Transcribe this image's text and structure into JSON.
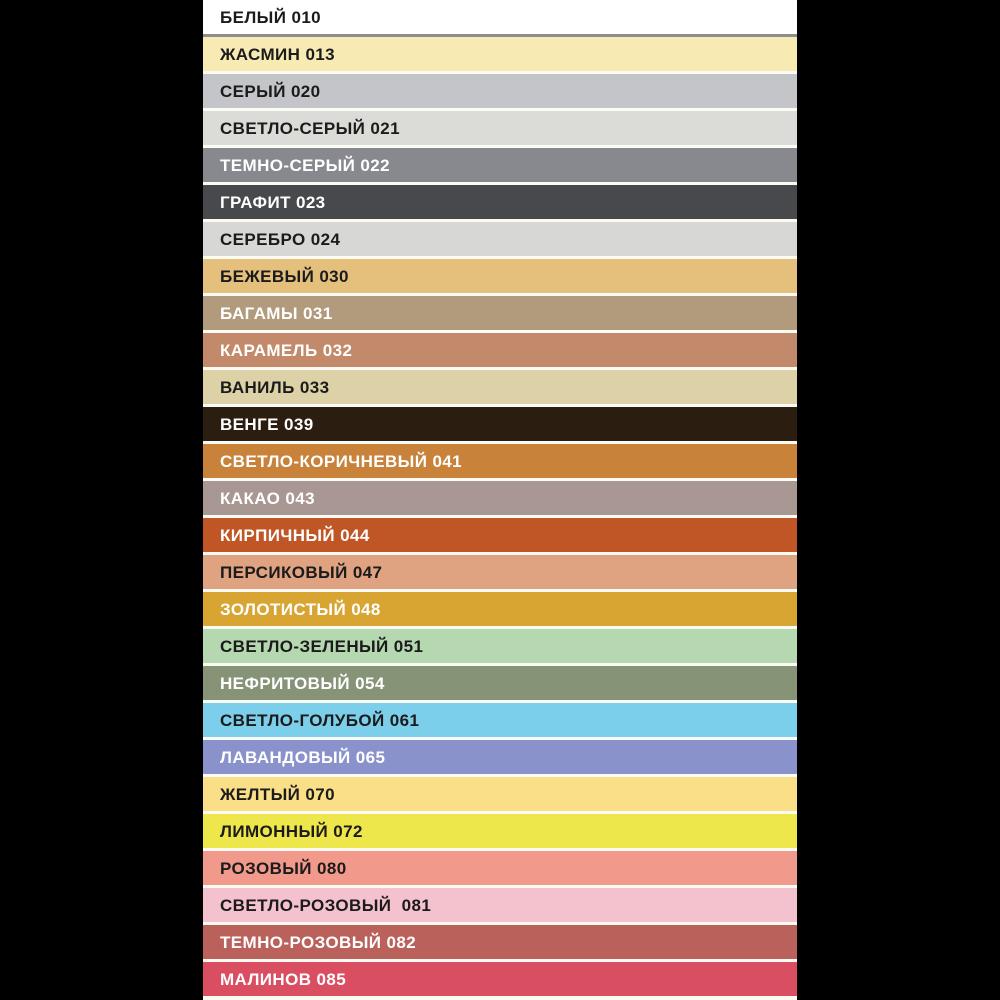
{
  "page": {
    "background": "#000000"
  },
  "palette": {
    "gap_color": "#FCFBF3",
    "first_row_divider_color": "#8E8E8E",
    "dark_text_color": "#1B1B1B",
    "light_text_color": "#FFFFFF"
  },
  "chart_data": {
    "type": "table",
    "columns": [
      "name",
      "code",
      "swatch_hex"
    ],
    "rows": [
      {
        "name": "БЕЛЫЙ",
        "code": "010",
        "label": "БЕЛЫЙ 010",
        "swatch": "#FFFFFF",
        "text": "#1B1B1B"
      },
      {
        "name": "ЖАСМИН",
        "code": "013",
        "label": "ЖАСМИН 013",
        "swatch": "#F7EBB3",
        "text": "#1B1B1B"
      },
      {
        "name": "СЕРЫЙ",
        "code": "020",
        "label": "СЕРЫЙ 020",
        "swatch": "#C3C5C8",
        "text": "#1B1B1B"
      },
      {
        "name": "СВЕТЛО-СЕРЫЙ",
        "code": "021",
        "label": "СВЕТЛО-СЕРЫЙ 021",
        "swatch": "#DBDBD8",
        "text": "#1B1B1B"
      },
      {
        "name": "ТЕМНО-СЕРЫЙ",
        "code": "022",
        "label": "ТЕМНО-СЕРЫЙ 022",
        "swatch": "#87898E",
        "text": "#FFFFFF"
      },
      {
        "name": "ГРАФИТ",
        "code": "023",
        "label": "ГРАФИТ 023",
        "swatch": "#47494D",
        "text": "#FFFFFF"
      },
      {
        "name": "СЕРЕБРО",
        "code": "024",
        "label": "СЕРЕБРО 024",
        "swatch": "#D7D8D5",
        "text": "#1B1B1B"
      },
      {
        "name": "БЕЖЕВЫЙ",
        "code": "030",
        "label": "БЕЖЕВЫЙ 030",
        "swatch": "#E5C07D",
        "text": "#1B1B1B"
      },
      {
        "name": "БАГАМЫ",
        "code": "031",
        "label": "БАГАМЫ 031",
        "swatch": "#B29A7C",
        "text": "#FFFFFF"
      },
      {
        "name": "КАРАМЕЛЬ",
        "code": "032",
        "label": "КАРАМЕЛЬ 032",
        "swatch": "#C28A6B",
        "text": "#FFFFFF"
      },
      {
        "name": "ВАНИЛЬ",
        "code": "033",
        "label": "ВАНИЛЬ 033",
        "swatch": "#DCD1A7",
        "text": "#1B1B1B"
      },
      {
        "name": "ВЕНГЕ",
        "code": "039",
        "label": "ВЕНГЕ 039",
        "swatch": "#2C1D11",
        "text": "#FFFFFF"
      },
      {
        "name": "СВЕТЛО-КОРИЧНЕВЫЙ",
        "code": "041",
        "label": "СВЕТЛО-КОРИЧНЕВЫЙ 041",
        "swatch": "#C8823A",
        "text": "#FFFFFF"
      },
      {
        "name": "КАКАО",
        "code": "043",
        "label": "КАКАО 043",
        "swatch": "#A99793",
        "text": "#FFFFFF"
      },
      {
        "name": "КИРПИЧНЫЙ",
        "code": "044",
        "label": "КИРПИЧНЫЙ 044",
        "swatch": "#C05526",
        "text": "#FFFFFF"
      },
      {
        "name": "ПЕРСИКОВЫЙ",
        "code": "047",
        "label": "ПЕРСИКОВЫЙ 047",
        "swatch": "#DFA382",
        "text": "#1B1B1B"
      },
      {
        "name": "ЗОЛОТИСТЫЙ",
        "code": "048",
        "label": "ЗОЛОТИСТЫЙ 048",
        "swatch": "#D8A532",
        "text": "#FFFFFF"
      },
      {
        "name": "СВЕТЛО-ЗЕЛЕНЫЙ",
        "code": "051",
        "label": "СВЕТЛО-ЗЕЛЕНЫЙ 051",
        "swatch": "#B5D8B1",
        "text": "#1B1B1B"
      },
      {
        "name": "НЕФРИТОВЫЙ",
        "code": "054",
        "label": "НЕФРИТОВЫЙ 054",
        "swatch": "#869377",
        "text": "#FFFFFF"
      },
      {
        "name": "СВЕТЛО-ГОЛУБОЙ",
        "code": "061",
        "label": "СВЕТЛО-ГОЛУБОЙ 061",
        "swatch": "#7CCFEB",
        "text": "#1B1B1B"
      },
      {
        "name": "ЛАВАНДОВЫЙ",
        "code": "065",
        "label": "ЛАВАНДОВЫЙ 065",
        "swatch": "#8A92CC",
        "text": "#FFFFFF"
      },
      {
        "name": "ЖЕЛТЫЙ",
        "code": "070",
        "label": "ЖЕЛТЫЙ 070",
        "swatch": "#FADF88",
        "text": "#1B1B1B"
      },
      {
        "name": "ЛИМОННЫЙ",
        "code": "072",
        "label": "ЛИМОННЫЙ 072",
        "swatch": "#EDE74B",
        "text": "#1B1B1B"
      },
      {
        "name": "РОЗОВЫЙ",
        "code": "080",
        "label": "РОЗОВЫЙ 080",
        "swatch": "#F19A8B",
        "text": "#1B1B1B"
      },
      {
        "name": "СВЕТЛО-РОЗОВЫЙ",
        "code": "081",
        "label": "СВЕТЛО-РОЗОВЫЙ  081",
        "swatch": "#F4C2CE",
        "text": "#1B1B1B"
      },
      {
        "name": "ТЕМНО-РОЗОВЫЙ",
        "code": "082",
        "label": "ТЕМНО-РОЗОВЫЙ 082",
        "swatch": "#BB615B",
        "text": "#FFFFFF"
      },
      {
        "name": "МАЛИНОВ",
        "code": "085",
        "label": "МАЛИНОВ 085",
        "swatch": "#DA4E61",
        "text": "#FFFFFF"
      }
    ]
  }
}
